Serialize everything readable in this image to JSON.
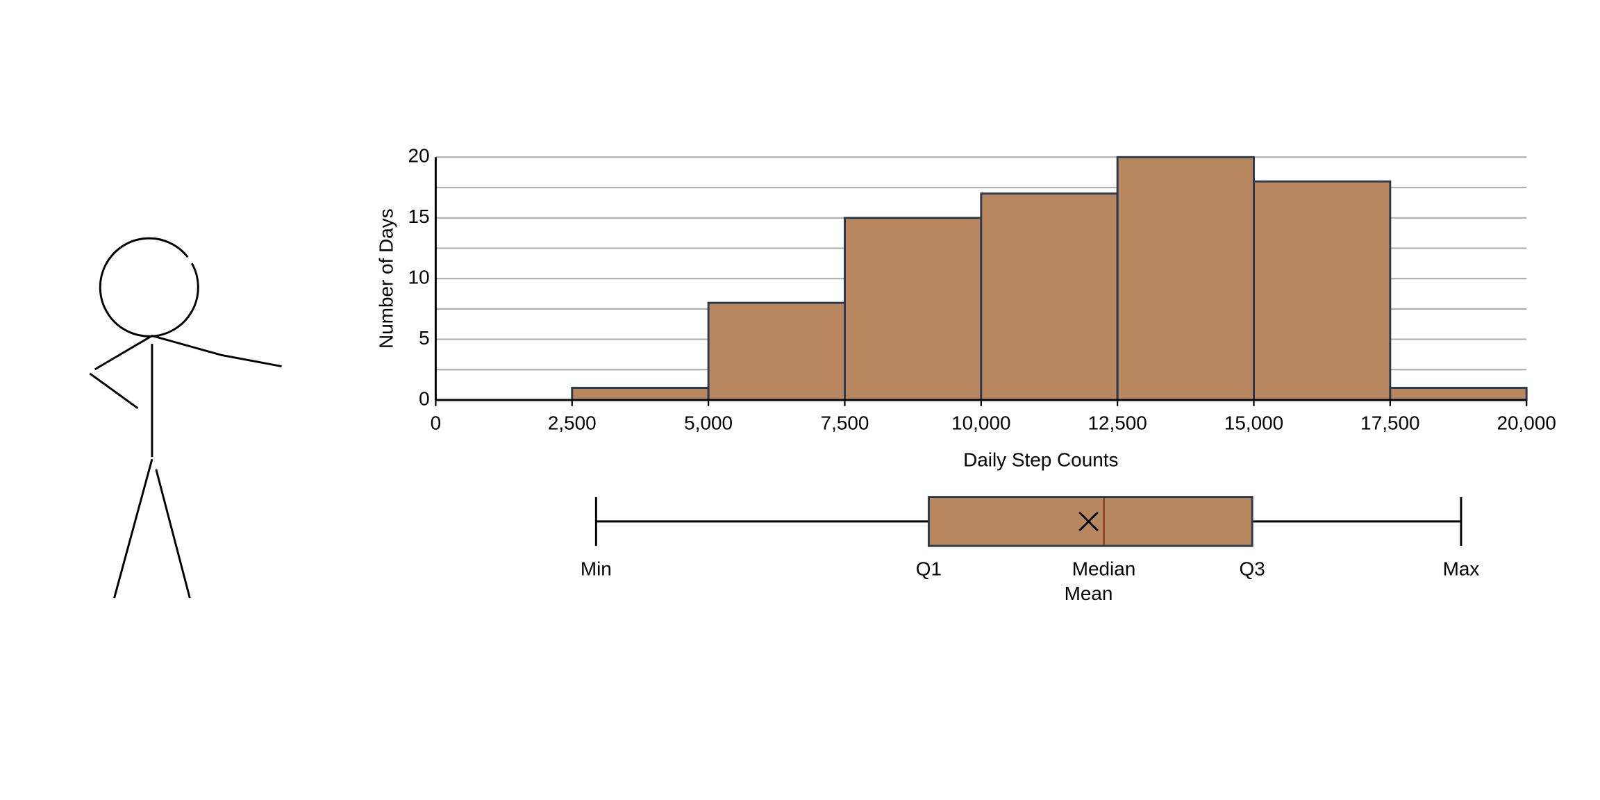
{
  "chart_data": {
    "type": "histogram",
    "x_label": "Daily Step Counts",
    "y_label": "Number of Days",
    "bins": [
      0,
      2500,
      5000,
      7500,
      10000,
      12500,
      15000,
      17500,
      20000
    ],
    "counts": [
      0,
      1,
      8,
      15,
      17,
      20,
      18,
      1
    ],
    "color": "#b8875f",
    "edge_color": "#2b3a4f",
    "xlim": [
      0,
      20000
    ],
    "xticks": [
      0,
      {
        "value": 2500,
        "label": "2,500"
      },
      {
        "value": 5000,
        "label": "5,000"
      },
      {
        "value": 7500,
        "label": "7,500"
      },
      {
        "value": 10000,
        "label": "10,000"
      },
      {
        "value": 12500,
        "label": "12,500"
      },
      {
        "value": 15000,
        "label": "15,000"
      },
      {
        "value": 17500,
        "label": "17,500"
      },
      {
        "value": 20000,
        "label": "20,000"
      }
    ],
    "ylim": [
      0,
      20
    ],
    "yticks": [
      0,
      5,
      10,
      15,
      20
    ],
    "grid": true,
    "boxplot": {
      "stats": [
        {
          "label": "Min",
          "value": 2940
        },
        {
          "label": "Q1",
          "value": 9040
        },
        {
          "label": "Median",
          "value": 12250
        },
        {
          "label": "Q3",
          "value": 14970
        },
        {
          "label": "Max",
          "value": 18800
        }
      ],
      "mean": {
        "label": "Mean",
        "value": 11970
      },
      "median_color": "#8b4a2b"
    }
  }
}
